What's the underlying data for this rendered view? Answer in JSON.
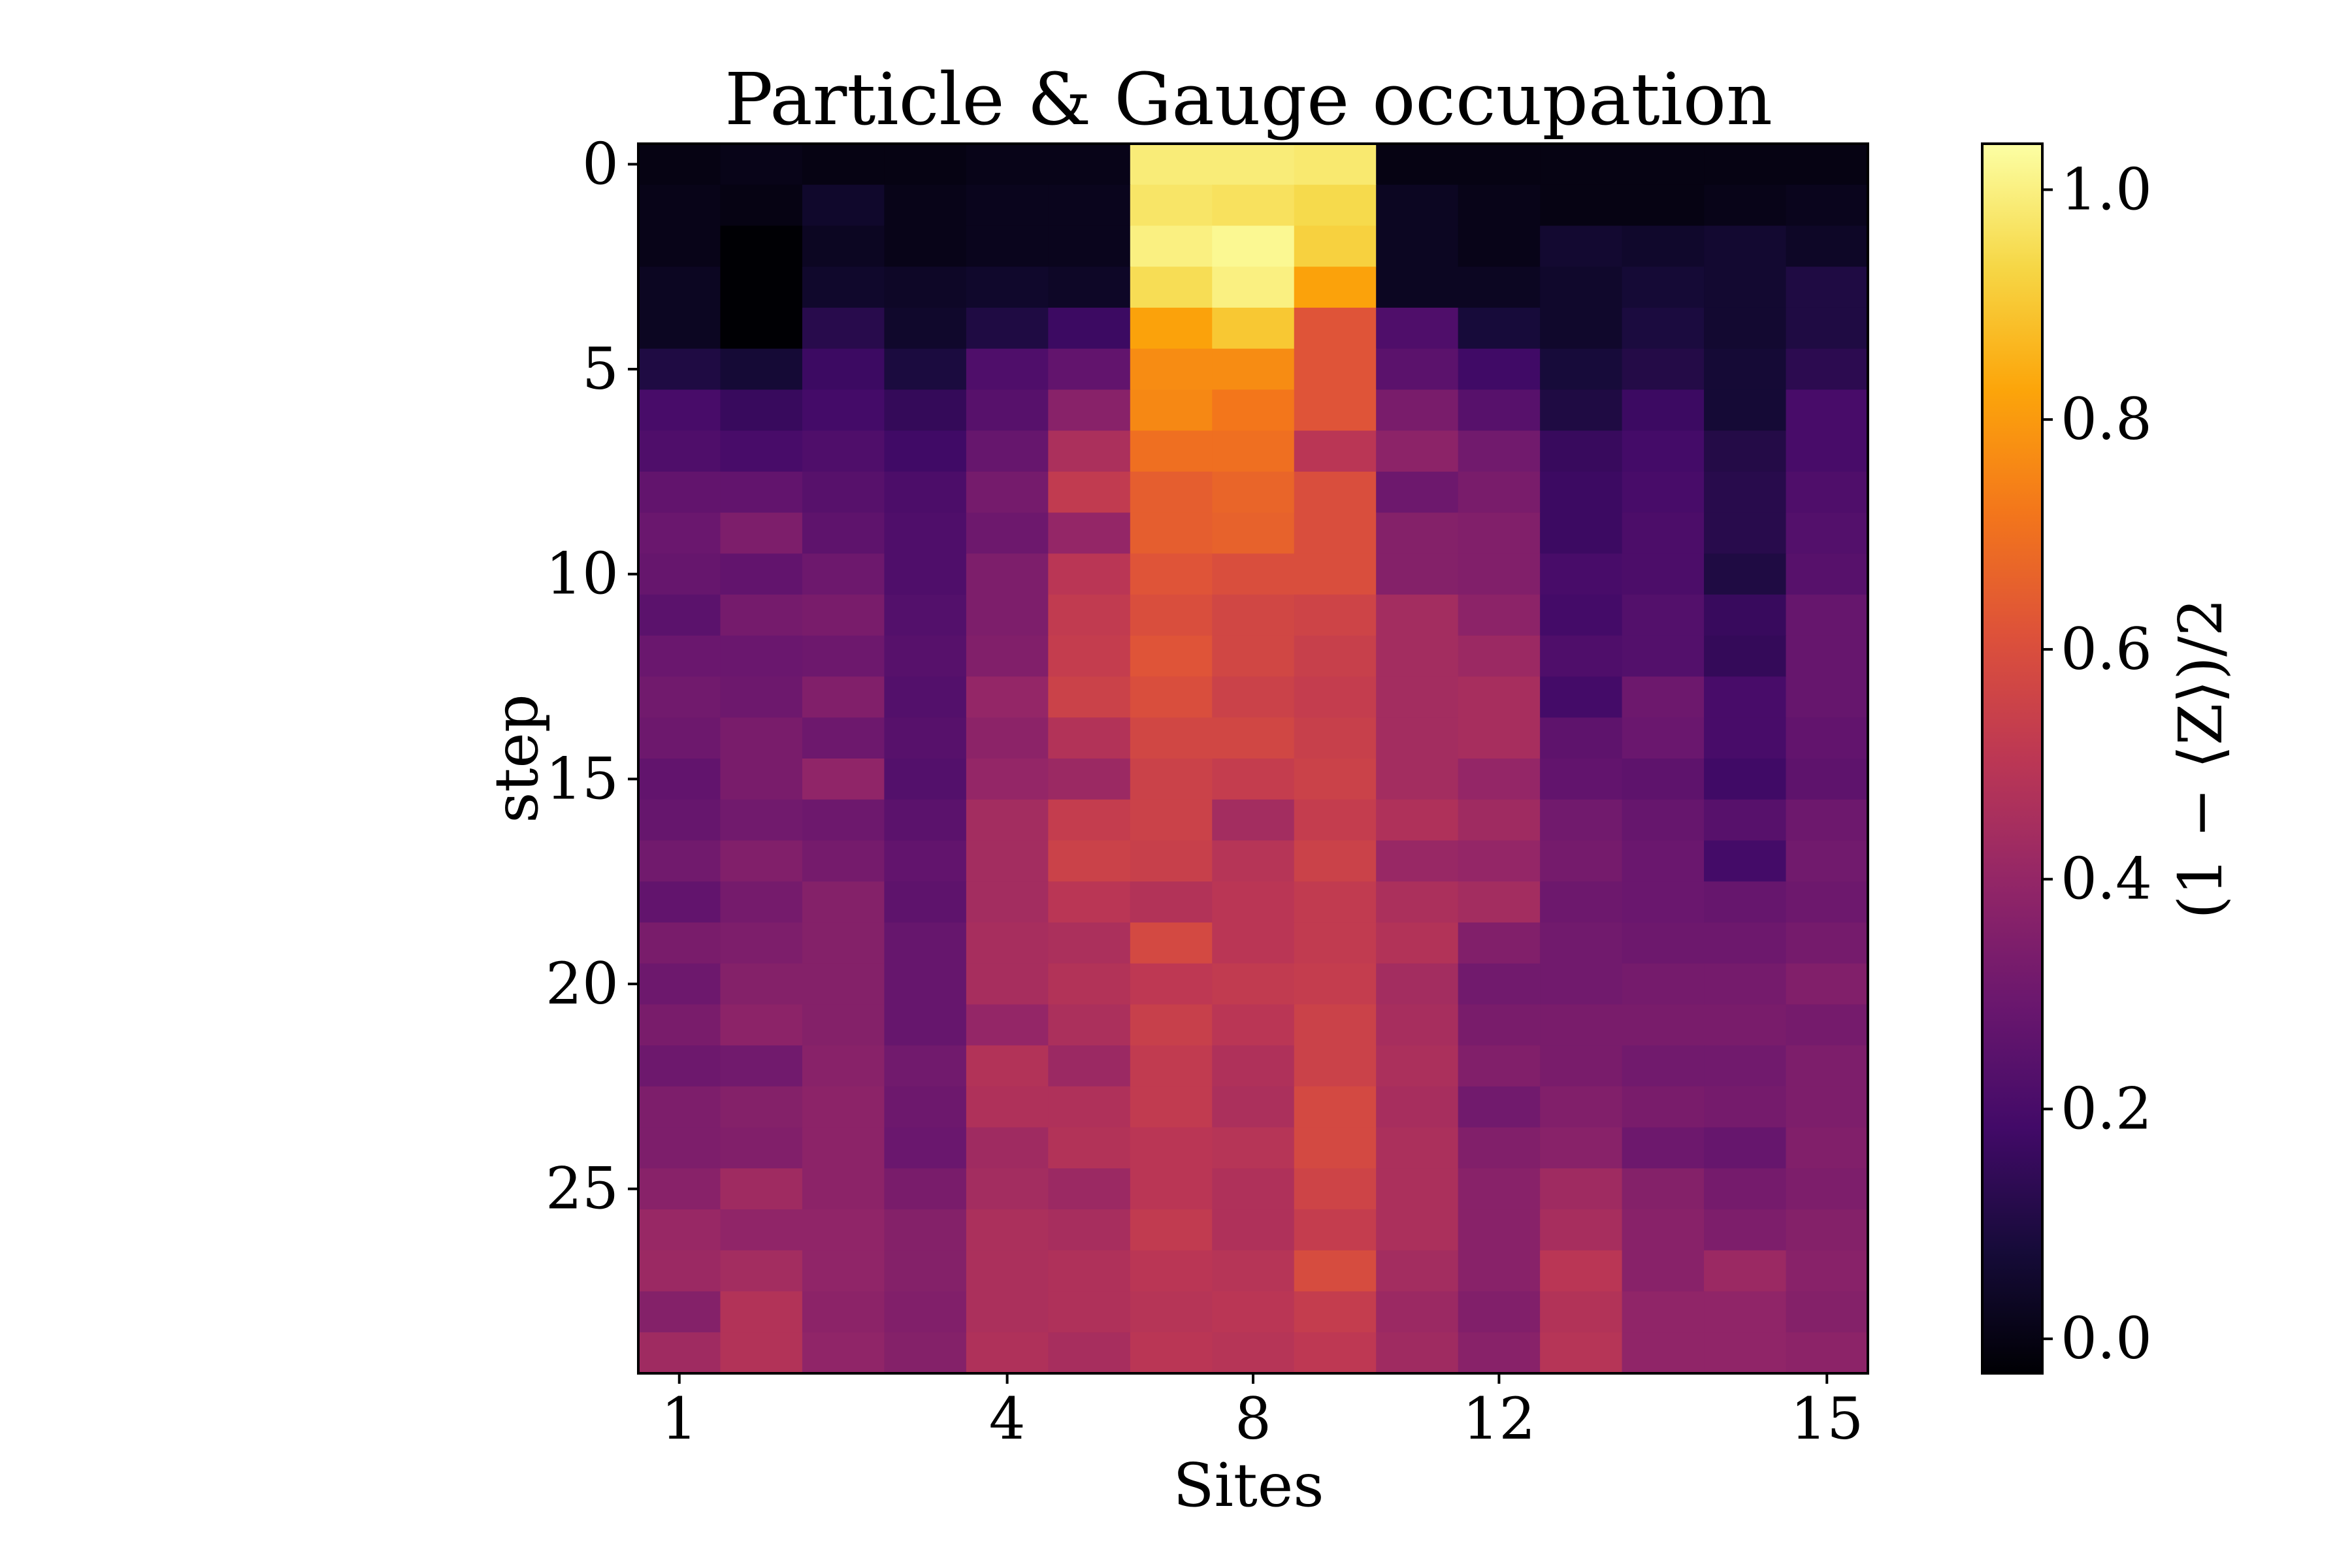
{
  "chart_data": {
    "type": "heatmap",
    "title": "Particle & Gauge occupation",
    "xlabel": "Sites",
    "ylabel": "step",
    "colorbar_label": "(1 − ⟨Z⟩)/2",
    "colormap": "inferno",
    "vmin": -0.03,
    "vmax": 1.04,
    "n_cols": 15,
    "n_rows": 30,
    "x_ticks": [
      {
        "col": 0,
        "label": "1"
      },
      {
        "col": 4,
        "label": "4"
      },
      {
        "col": 7,
        "label": "8"
      },
      {
        "col": 10,
        "label": "12"
      },
      {
        "col": 14,
        "label": "15"
      }
    ],
    "y_ticks": [
      {
        "row": 0,
        "label": "0"
      },
      {
        "row": 5,
        "label": "5"
      },
      {
        "row": 10,
        "label": "10"
      },
      {
        "row": 15,
        "label": "15"
      },
      {
        "row": 20,
        "label": "20"
      },
      {
        "row": 25,
        "label": "25"
      }
    ],
    "colorbar_ticks": [
      {
        "value": 0.0,
        "label": "0.0"
      },
      {
        "value": 0.2,
        "label": "0.2"
      },
      {
        "value": 0.4,
        "label": "0.4"
      },
      {
        "value": 0.6,
        "label": "0.6"
      },
      {
        "value": 0.8,
        "label": "0.8"
      },
      {
        "value": 1.0,
        "label": "1.0"
      }
    ],
    "grid": false,
    "values": [
      [
        0.0,
        0.01,
        0.0,
        0.0,
        0.01,
        0.01,
        0.99,
        0.99,
        0.98,
        0.0,
        0.0,
        0.0,
        0.0,
        0.0,
        0.0
      ],
      [
        0.01,
        0.0,
        0.05,
        0.01,
        0.02,
        0.02,
        0.97,
        0.96,
        0.94,
        0.03,
        0.01,
        0.0,
        0.0,
        0.01,
        0.02
      ],
      [
        0.01,
        -0.03,
        0.03,
        0.01,
        0.02,
        0.02,
        1.0,
        1.02,
        0.92,
        0.03,
        0.01,
        0.06,
        0.05,
        0.06,
        0.04
      ],
      [
        0.03,
        -0.03,
        0.05,
        0.04,
        0.05,
        0.04,
        0.95,
        1.0,
        0.82,
        0.03,
        0.03,
        0.05,
        0.07,
        0.06,
        0.1
      ],
      [
        0.03,
        -0.03,
        0.12,
        0.05,
        0.1,
        0.17,
        0.82,
        0.9,
        0.62,
        0.22,
        0.08,
        0.05,
        0.09,
        0.06,
        0.1
      ],
      [
        0.1,
        0.07,
        0.17,
        0.09,
        0.22,
        0.27,
        0.77,
        0.77,
        0.62,
        0.25,
        0.18,
        0.08,
        0.11,
        0.07,
        0.13
      ],
      [
        0.2,
        0.16,
        0.19,
        0.15,
        0.24,
        0.37,
        0.76,
        0.72,
        0.62,
        0.33,
        0.24,
        0.1,
        0.17,
        0.07,
        0.2
      ],
      [
        0.22,
        0.2,
        0.22,
        0.18,
        0.28,
        0.46,
        0.7,
        0.7,
        0.5,
        0.38,
        0.31,
        0.16,
        0.19,
        0.11,
        0.2
      ],
      [
        0.27,
        0.27,
        0.24,
        0.21,
        0.32,
        0.52,
        0.65,
        0.67,
        0.6,
        0.3,
        0.33,
        0.17,
        0.2,
        0.12,
        0.22
      ],
      [
        0.29,
        0.34,
        0.26,
        0.22,
        0.3,
        0.4,
        0.65,
        0.66,
        0.6,
        0.36,
        0.35,
        0.17,
        0.21,
        0.12,
        0.23
      ],
      [
        0.28,
        0.27,
        0.3,
        0.22,
        0.34,
        0.5,
        0.62,
        0.6,
        0.6,
        0.36,
        0.35,
        0.2,
        0.21,
        0.1,
        0.24
      ],
      [
        0.25,
        0.32,
        0.33,
        0.23,
        0.34,
        0.52,
        0.6,
        0.57,
        0.56,
        0.44,
        0.38,
        0.19,
        0.23,
        0.16,
        0.28
      ],
      [
        0.29,
        0.29,
        0.3,
        0.24,
        0.35,
        0.53,
        0.62,
        0.57,
        0.54,
        0.44,
        0.42,
        0.22,
        0.23,
        0.15,
        0.28
      ],
      [
        0.31,
        0.3,
        0.35,
        0.23,
        0.4,
        0.55,
        0.6,
        0.55,
        0.53,
        0.44,
        0.45,
        0.19,
        0.3,
        0.2,
        0.28
      ],
      [
        0.3,
        0.33,
        0.3,
        0.24,
        0.38,
        0.48,
        0.57,
        0.57,
        0.54,
        0.44,
        0.45,
        0.26,
        0.29,
        0.2,
        0.27
      ],
      [
        0.27,
        0.33,
        0.39,
        0.23,
        0.4,
        0.42,
        0.55,
        0.53,
        0.55,
        0.44,
        0.4,
        0.27,
        0.26,
        0.18,
        0.26
      ],
      [
        0.28,
        0.31,
        0.3,
        0.25,
        0.44,
        0.53,
        0.55,
        0.44,
        0.53,
        0.47,
        0.43,
        0.31,
        0.28,
        0.24,
        0.3
      ],
      [
        0.31,
        0.35,
        0.32,
        0.27,
        0.44,
        0.55,
        0.54,
        0.49,
        0.55,
        0.41,
        0.4,
        0.32,
        0.29,
        0.19,
        0.31
      ],
      [
        0.27,
        0.32,
        0.36,
        0.26,
        0.44,
        0.5,
        0.48,
        0.5,
        0.52,
        0.46,
        0.44,
        0.3,
        0.29,
        0.28,
        0.3
      ],
      [
        0.33,
        0.34,
        0.36,
        0.28,
        0.45,
        0.46,
        0.58,
        0.5,
        0.52,
        0.48,
        0.35,
        0.31,
        0.3,
        0.3,
        0.32
      ],
      [
        0.3,
        0.36,
        0.36,
        0.28,
        0.45,
        0.48,
        0.51,
        0.52,
        0.53,
        0.44,
        0.31,
        0.31,
        0.32,
        0.32,
        0.35
      ],
      [
        0.33,
        0.38,
        0.36,
        0.28,
        0.4,
        0.46,
        0.54,
        0.5,
        0.55,
        0.45,
        0.33,
        0.33,
        0.33,
        0.33,
        0.32
      ],
      [
        0.3,
        0.31,
        0.37,
        0.31,
        0.48,
        0.42,
        0.52,
        0.47,
        0.55,
        0.46,
        0.35,
        0.33,
        0.31,
        0.31,
        0.34
      ],
      [
        0.34,
        0.36,
        0.38,
        0.3,
        0.47,
        0.47,
        0.52,
        0.46,
        0.58,
        0.45,
        0.31,
        0.35,
        0.33,
        0.32,
        0.34
      ],
      [
        0.34,
        0.35,
        0.38,
        0.29,
        0.43,
        0.48,
        0.5,
        0.49,
        0.58,
        0.46,
        0.35,
        0.37,
        0.3,
        0.28,
        0.35
      ],
      [
        0.37,
        0.43,
        0.38,
        0.33,
        0.44,
        0.42,
        0.5,
        0.47,
        0.56,
        0.46,
        0.37,
        0.43,
        0.36,
        0.32,
        0.34
      ],
      [
        0.41,
        0.39,
        0.39,
        0.36,
        0.46,
        0.45,
        0.52,
        0.47,
        0.53,
        0.46,
        0.37,
        0.45,
        0.37,
        0.34,
        0.36
      ],
      [
        0.42,
        0.44,
        0.39,
        0.36,
        0.46,
        0.47,
        0.5,
        0.49,
        0.59,
        0.44,
        0.37,
        0.5,
        0.37,
        0.42,
        0.37
      ],
      [
        0.36,
        0.48,
        0.38,
        0.35,
        0.46,
        0.47,
        0.49,
        0.5,
        0.53,
        0.42,
        0.35,
        0.48,
        0.39,
        0.39,
        0.36
      ],
      [
        0.43,
        0.48,
        0.39,
        0.36,
        0.47,
        0.45,
        0.5,
        0.49,
        0.51,
        0.43,
        0.37,
        0.49,
        0.39,
        0.39,
        0.38
      ]
    ]
  }
}
